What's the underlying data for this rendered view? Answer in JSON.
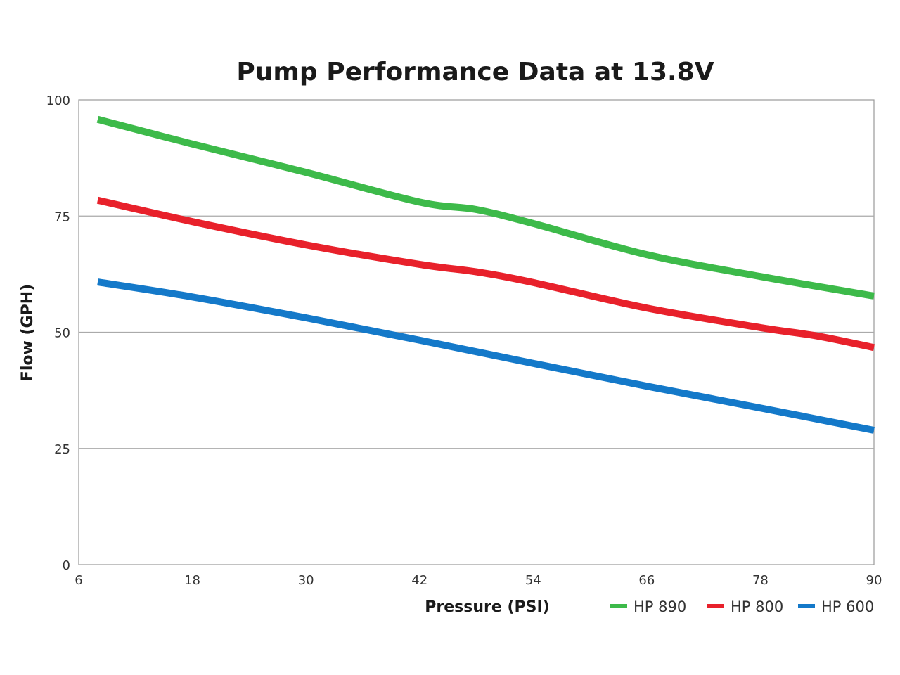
{
  "chart_data": {
    "type": "line",
    "title": "Pump Performance Data at 13.8V",
    "xlabel": "Pressure (PSI)",
    "ylabel": "Flow (GPH)",
    "xlim": [
      6,
      90
    ],
    "ylim": [
      0,
      100
    ],
    "xticks": [
      6,
      18,
      30,
      42,
      54,
      66,
      78,
      90
    ],
    "yticks": [
      0,
      25,
      50,
      75,
      100
    ],
    "grid": "horizontal",
    "legend_position": "bottom-right",
    "series": [
      {
        "name": "HP 890",
        "color": "#3dba4a",
        "x": [
          8,
          18,
          30,
          42,
          48,
          54,
          66,
          78,
          90
        ],
        "y": [
          95.8,
          90.5,
          84.4,
          78,
          76.4,
          73.4,
          66.7,
          62,
          57.8
        ]
      },
      {
        "name": "HP 800",
        "color": "#e8212b",
        "x": [
          8,
          18,
          30,
          42,
          48,
          54,
          66,
          78,
          84,
          90
        ],
        "y": [
          78.4,
          73.8,
          68.8,
          64.6,
          63,
          60.7,
          55.2,
          51,
          49.2,
          46.7
        ]
      },
      {
        "name": "HP 600",
        "color": "#1479c9",
        "x": [
          8,
          18,
          30,
          42,
          54,
          66,
          78,
          90
        ],
        "y": [
          60.8,
          57.6,
          53.1,
          48.3,
          43.3,
          38.4,
          33.7,
          28.9
        ]
      }
    ]
  }
}
